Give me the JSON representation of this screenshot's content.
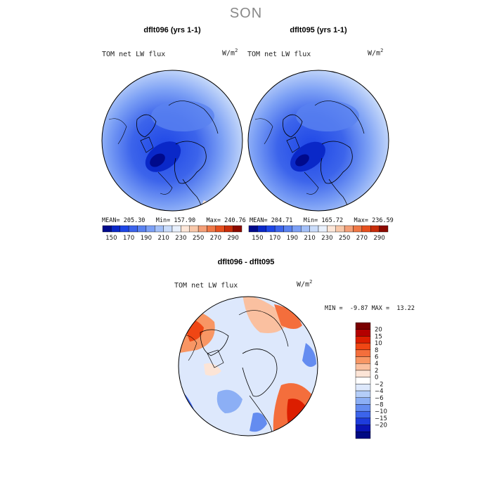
{
  "page_title": "SON",
  "chart_data": [
    {
      "type": "heatmap",
      "title": "dflt096 (yrs 1-1)",
      "variable_label": "TOM net LW flux",
      "units": "W/m",
      "units_sup": "2",
      "stats": {
        "mean_label": "MEAN=",
        "mean": "205.30",
        "min_label": "Min=",
        "min": "157.90",
        "max_label": "Max=",
        "max": "240.76"
      },
      "colorbar": {
        "orientation": "horizontal",
        "colors": [
          "#000a8c",
          "#0a28c8",
          "#1e46e6",
          "#3c64eb",
          "#5a82f0",
          "#7ca0f5",
          "#a4c0f8",
          "#cadcfa",
          "#e8f0fc",
          "#fce6d8",
          "#f8c8aa",
          "#f4a078",
          "#f07846",
          "#e6501e",
          "#c82d0a",
          "#8c0a00"
        ],
        "tick_labels": [
          "150",
          "170",
          "190",
          "210",
          "230",
          "250",
          "270",
          "290"
        ]
      }
    },
    {
      "type": "heatmap",
      "title": "dflt095 (yrs 1-1)",
      "variable_label": "TOM net LW flux",
      "units": "W/m",
      "units_sup": "2",
      "stats": {
        "mean_label": "MEAN=",
        "mean": "204.71",
        "min_label": "Min=",
        "min": "165.72",
        "max_label": "Max=",
        "max": "236.59"
      },
      "colorbar": {
        "orientation": "horizontal",
        "colors": [
          "#000a8c",
          "#0a28c8",
          "#1e46e6",
          "#3c64eb",
          "#5a82f0",
          "#7ca0f5",
          "#a4c0f8",
          "#cadcfa",
          "#e8f0fc",
          "#fce6d8",
          "#f8c8aa",
          "#f4a078",
          "#f07846",
          "#e6501e",
          "#c82d0a",
          "#8c0a00"
        ],
        "tick_labels": [
          "150",
          "170",
          "190",
          "210",
          "230",
          "250",
          "270",
          "290"
        ]
      }
    },
    {
      "type": "heatmap",
      "title": "dflt096 - dflt095",
      "variable_label": "TOM net LW flux",
      "units": "W/m",
      "units_sup": "2",
      "stats": {
        "min_label": "MIN =",
        "min": "-9.87",
        "max_label": "MAX =",
        "max": "13.22"
      },
      "colorbar": {
        "orientation": "vertical",
        "colors": [
          "#7a0000",
          "#b40000",
          "#dc1e00",
          "#f04614",
          "#f46e3c",
          "#f89664",
          "#fac0a0",
          "#fce4d6",
          "#ffffff",
          "#dde8fc",
          "#b4cdf8",
          "#8caff5",
          "#648cf0",
          "#3c64eb",
          "#1e3cdc",
          "#0a14b4",
          "#000a82"
        ],
        "tick_labels": [
          "20",
          "15",
          "10",
          "8",
          "6",
          "4",
          "2",
          "0",
          "−2",
          "−4",
          "−6",
          "−8",
          "−10",
          "−15",
          "−20"
        ]
      }
    }
  ]
}
